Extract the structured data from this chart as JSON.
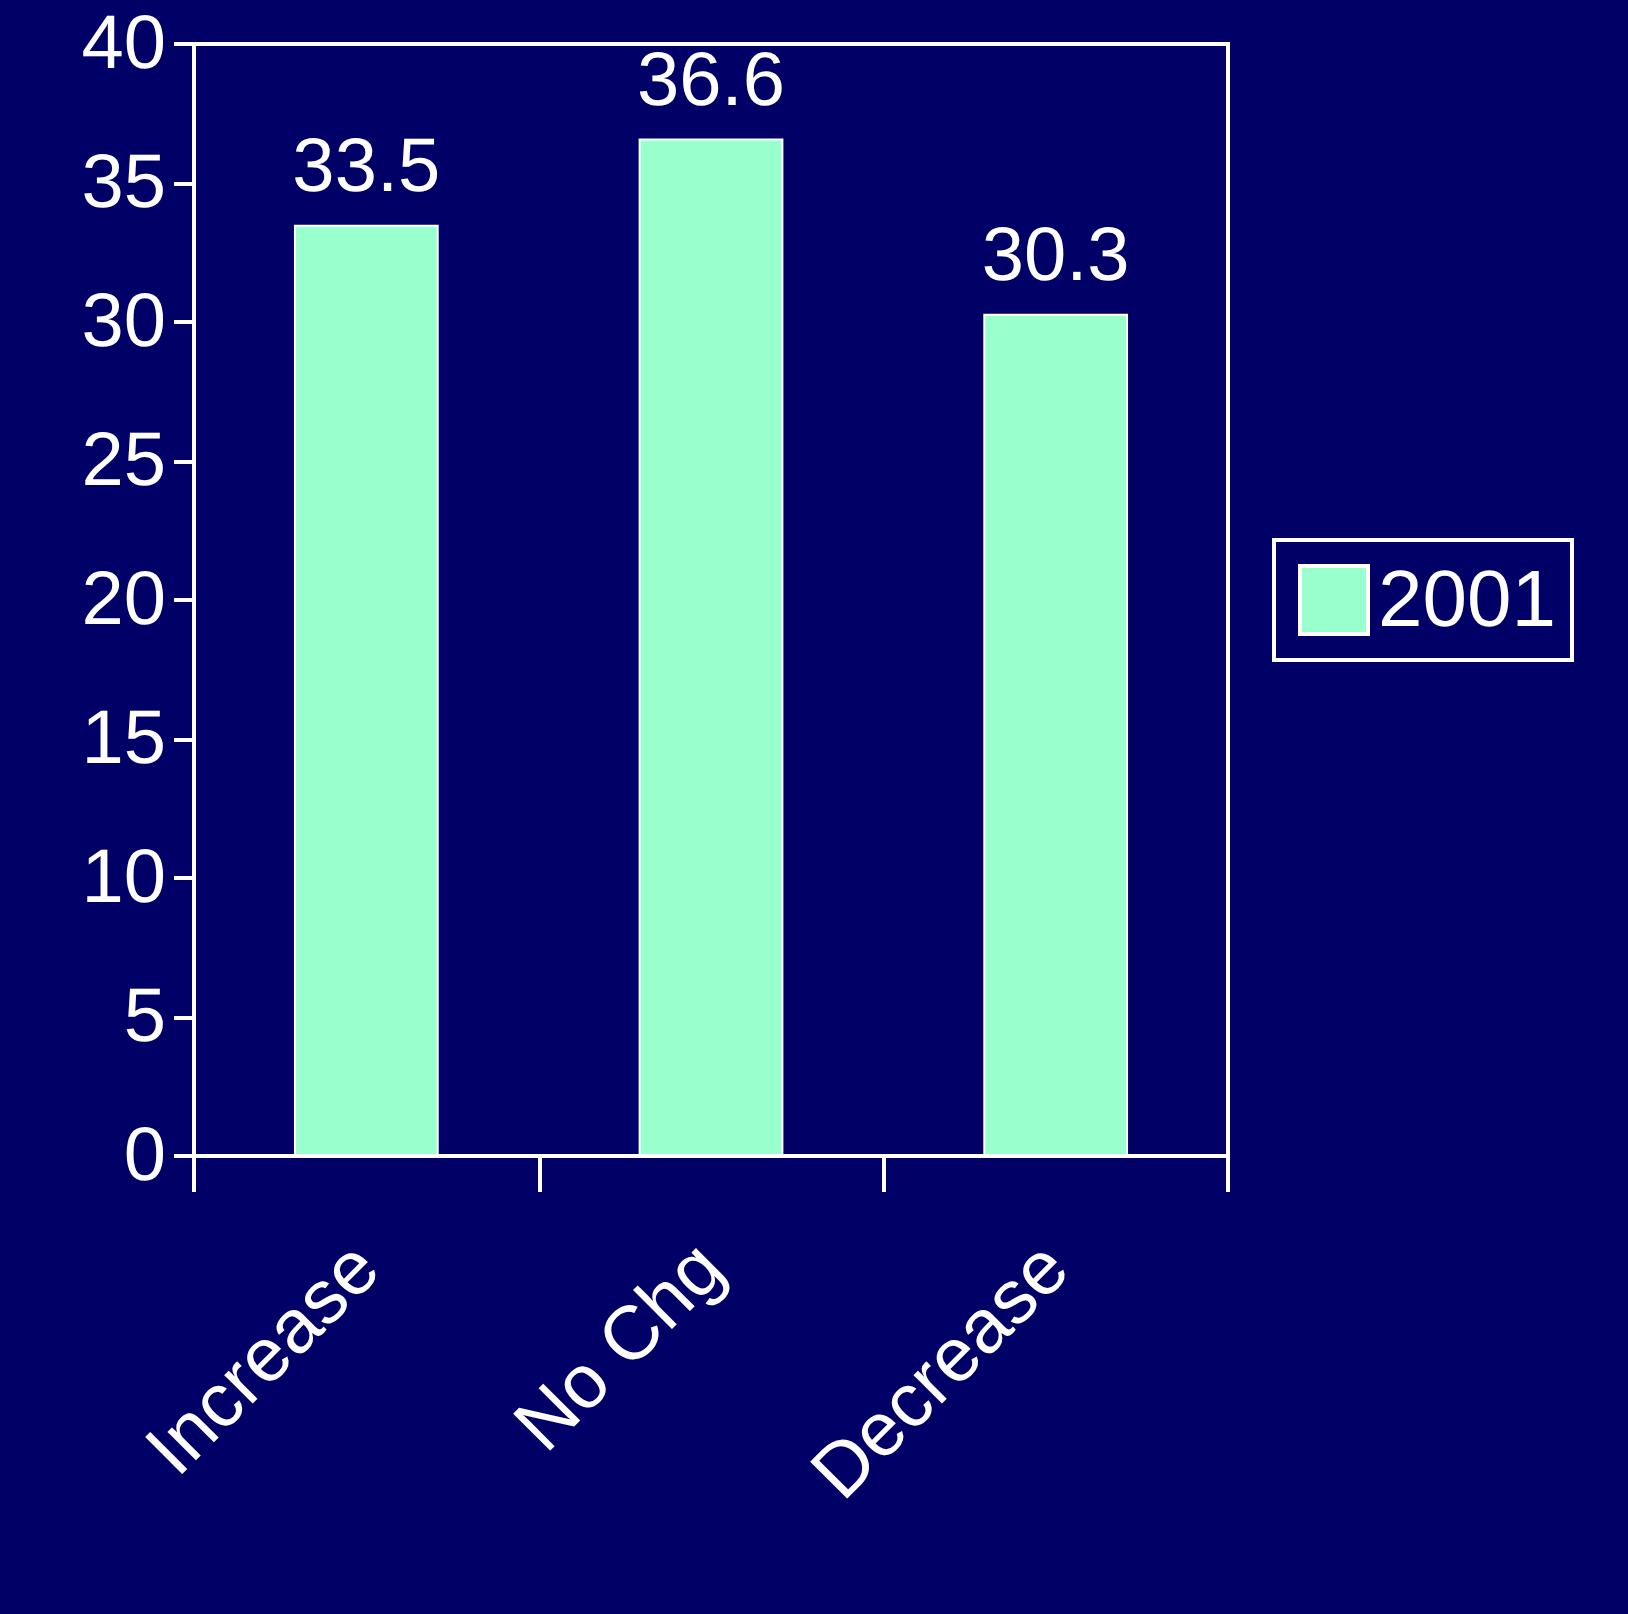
{
  "chart_data": {
    "type": "bar",
    "categories": [
      "Increase",
      "No Chg",
      "Decrease"
    ],
    "series": [
      {
        "name": "2001",
        "color": "#99ffcc",
        "values": [
          33.5,
          36.6,
          30.3
        ]
      }
    ],
    "ylim": [
      0,
      40
    ],
    "yticks": [
      0,
      5,
      10,
      15,
      20,
      25,
      30,
      35,
      40
    ],
    "grid": false,
    "legend": "right",
    "data_labels": true
  }
}
